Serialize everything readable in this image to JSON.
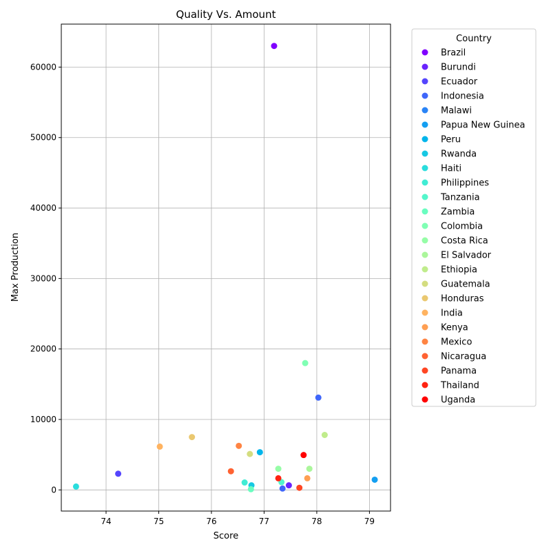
{
  "chart_data": {
    "type": "scatter",
    "title": "Quality Vs. Amount",
    "xlabel": "Score",
    "ylabel": "Max Production",
    "xlim": [
      73.15,
      79.4
    ],
    "ylim": [
      -3000,
      66100
    ],
    "xticks": [
      "74",
      "75",
      "76",
      "77",
      "78",
      "79"
    ],
    "yticks": [
      "0",
      "10000",
      "20000",
      "30000",
      "40000",
      "50000",
      "60000"
    ],
    "grid": true,
    "legend": {
      "title": "Country",
      "placement": "outside-right"
    },
    "series": [
      {
        "name": "Brazil",
        "color": "#8000ff",
        "points": [
          [
            77.19,
            63000
          ]
        ]
      },
      {
        "name": "Burundi",
        "color": "#6a23fe",
        "points": [
          [
            77.47,
            650
          ]
        ]
      },
      {
        "name": "Ecuador",
        "color": "#5545fd",
        "points": [
          [
            74.23,
            2300
          ]
        ]
      },
      {
        "name": "Indonesia",
        "color": "#3f66fa",
        "points": [
          [
            78.03,
            13100
          ],
          [
            77.35,
            200
          ]
        ]
      },
      {
        "name": "Malawi",
        "color": "#2a84f6",
        "points": []
      },
      {
        "name": "Papua New Guinea",
        "color": "#149ff1",
        "points": [
          [
            79.1,
            1450
          ]
        ]
      },
      {
        "name": "Peru",
        "color": "#00b5eb",
        "points": [
          [
            76.92,
            5350
          ]
        ]
      },
      {
        "name": "Rwanda",
        "color": "#16c8e3",
        "points": [
          [
            76.76,
            650
          ]
        ]
      },
      {
        "name": "Haiti",
        "color": "#2adddd",
        "points": [
          [
            73.43,
            480
          ]
        ]
      },
      {
        "name": "Philippines",
        "color": "#40ecd4",
        "points": [
          [
            76.63,
            1050
          ]
        ]
      },
      {
        "name": "Tanzania",
        "color": "#54f6cb",
        "points": [
          [
            77.33,
            1100
          ]
        ]
      },
      {
        "name": "Zambia",
        "color": "#6afdc0",
        "points": [
          [
            76.75,
            100
          ]
        ]
      },
      {
        "name": "Colombia",
        "color": "#80ffb4",
        "points": [
          [
            77.78,
            18000
          ]
        ]
      },
      {
        "name": "Costa Rica",
        "color": "#96fda7",
        "points": [
          [
            77.27,
            3000
          ]
        ]
      },
      {
        "name": "El Salvador",
        "color": "#abf69b",
        "points": [
          [
            77.86,
            3000
          ]
        ]
      },
      {
        "name": "Ethiopia",
        "color": "#c0ec8c",
        "points": [
          [
            78.15,
            7800
          ]
        ]
      },
      {
        "name": "Guatemala",
        "color": "#d4dd80",
        "points": [
          [
            76.73,
            5100
          ]
        ]
      },
      {
        "name": "Honduras",
        "color": "#eac870",
        "points": [
          [
            75.63,
            7500
          ]
        ]
      },
      {
        "name": "India",
        "color": "#ffb360",
        "points": [
          [
            75.02,
            6150
          ]
        ]
      },
      {
        "name": "Kenya",
        "color": "#ff9f52",
        "points": [
          [
            77.82,
            1650
          ]
        ]
      },
      {
        "name": "Mexico",
        "color": "#ff8443",
        "points": [
          [
            76.52,
            6250
          ]
        ]
      },
      {
        "name": "Nicaragua",
        "color": "#ff6232",
        "points": [
          [
            76.37,
            2650
          ]
        ]
      },
      {
        "name": "Panama",
        "color": "#ff4623",
        "points": [
          [
            77.67,
            300
          ]
        ]
      },
      {
        "name": "Thailand",
        "color": "#ff2311",
        "points": [
          [
            77.27,
            1650
          ]
        ]
      },
      {
        "name": "Uganda",
        "color": "#ff0000",
        "points": [
          [
            77.75,
            4950
          ]
        ]
      }
    ]
  }
}
